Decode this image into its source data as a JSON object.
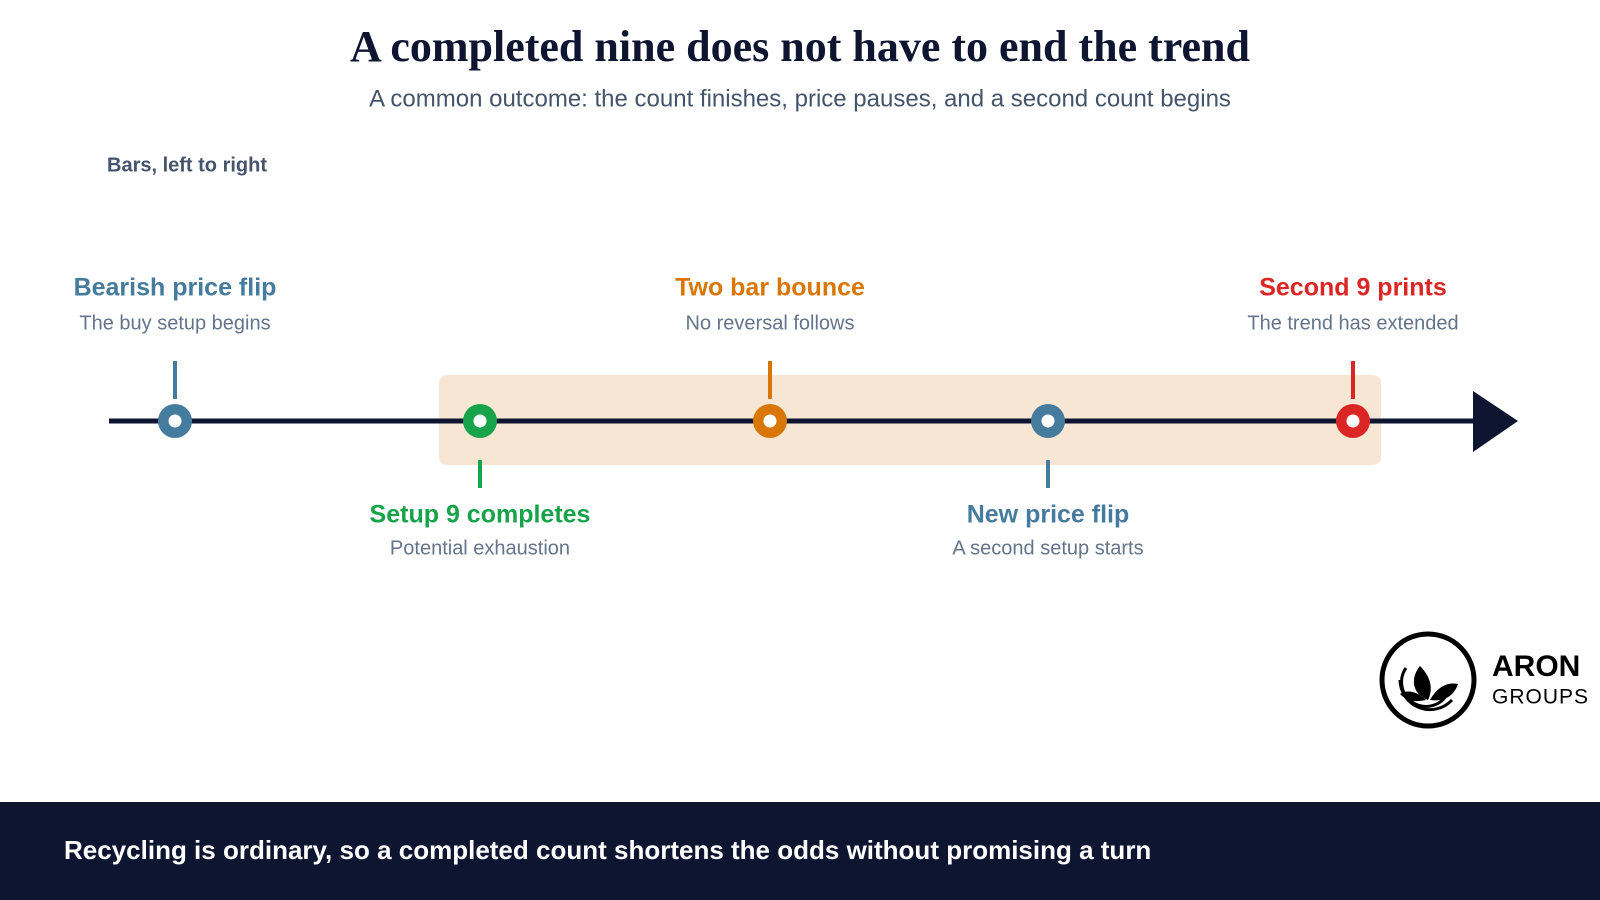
{
  "header": {
    "title": "A completed nine does not have to end the trend",
    "subtitle": "A common outcome: the count finishes, price pauses, and a second count begins"
  },
  "axis_label": "Bars, left to right",
  "events": [
    {
      "title": "Bearish price flip",
      "subtitle": "The buy setup begins"
    },
    {
      "title": "Setup 9 completes",
      "subtitle": "Potential exhaustion"
    },
    {
      "title": "Two bar bounce",
      "subtitle": "No reversal follows"
    },
    {
      "title": "New price flip",
      "subtitle": "A second setup starts"
    },
    {
      "title": "Second 9 prints",
      "subtitle": "The trend has extended"
    }
  ],
  "logo": {
    "name": "ARON",
    "tagline": "GROUPS"
  },
  "footer": "Recycling is ordinary, so a completed count shortens the odds without promising a turn"
}
